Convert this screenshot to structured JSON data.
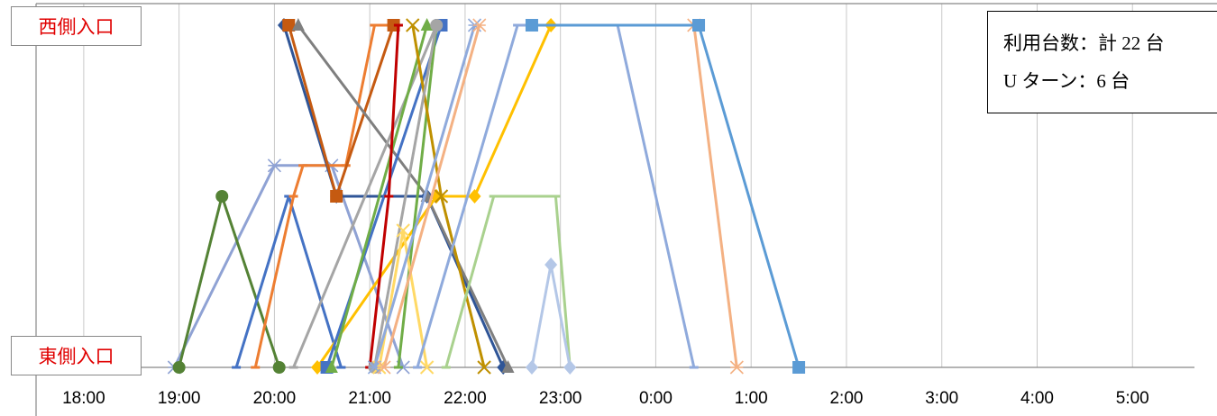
{
  "chart_data": {
    "type": "line",
    "y_categories": {
      "top": "西側入口",
      "bottom": "東側入口"
    },
    "x_ticks": [
      "18:00",
      "19:00",
      "20:00",
      "21:00",
      "22:00",
      "23:00",
      "0:00",
      "1:00",
      "2:00",
      "3:00",
      "4:00",
      "5:00"
    ],
    "xlim": [
      17.5,
      29.65
    ],
    "ylim": [
      0,
      1
    ],
    "grid": "vertical",
    "annotation": [
      "利用台数：計 22 台",
      "U ターン：6 台"
    ],
    "series": [
      {
        "color": "#8fa2d4",
        "marker": "star",
        "points": [
          [
            18.95,
            0
          ],
          [
            20.0,
            0.59
          ],
          [
            20.6,
            0.59
          ],
          [
            21.35,
            0
          ]
        ]
      },
      {
        "color": "#548235",
        "marker": "circle",
        "points": [
          [
            19.0,
            0
          ],
          [
            19.45,
            0.5
          ],
          [
            20.05,
            0
          ]
        ]
      },
      {
        "color": "#4472c4",
        "marker": "dash",
        "points": [
          [
            19.6,
            0
          ],
          [
            20.15,
            0.5
          ],
          [
            20.7,
            0
          ]
        ]
      },
      {
        "color": "#ed7d31",
        "marker": "dash",
        "points": [
          [
            19.8,
            0
          ],
          [
            20.2,
            0.5
          ],
          [
            20.3,
            0.59
          ],
          [
            20.75,
            0.59
          ],
          [
            21.05,
            1
          ],
          [
            21.3,
            1
          ]
        ]
      },
      {
        "color": "#2f5597",
        "marker": "diamond",
        "points": [
          [
            20.1,
            1
          ],
          [
            20.65,
            0.5
          ],
          [
            21.6,
            0.5
          ],
          [
            22.4,
            0
          ]
        ]
      },
      {
        "color": "#c55a11",
        "marker": "square",
        "points": [
          [
            20.15,
            1
          ],
          [
            20.65,
            0.5
          ],
          [
            21.25,
            1
          ]
        ]
      },
      {
        "color": "#7f7f7f",
        "marker": "triangle",
        "points": [
          [
            20.25,
            1
          ],
          [
            21.6,
            0.5
          ],
          [
            22.45,
            0
          ]
        ]
      },
      {
        "color": "#a5a5a5",
        "marker": "dash",
        "points": [
          [
            20.2,
            0
          ],
          [
            21.7,
            1
          ]
        ]
      },
      {
        "color": "#ffc000",
        "marker": "diamond",
        "points": [
          [
            20.45,
            0
          ],
          [
            21.7,
            0.5
          ],
          [
            22.1,
            0.5
          ],
          [
            22.9,
            1
          ]
        ]
      },
      {
        "color": "#4472c4",
        "marker": "square",
        "points": [
          [
            20.55,
            0
          ],
          [
            21.75,
            1
          ]
        ]
      },
      {
        "color": "#70ad47",
        "marker": "triangle",
        "points": [
          [
            20.6,
            0
          ],
          [
            21.6,
            1
          ]
        ]
      },
      {
        "color": "#70ad47",
        "marker": "dash",
        "points": [
          [
            21.3,
            0
          ],
          [
            21.7,
            1
          ]
        ]
      },
      {
        "color": "#c00000",
        "marker": "dash",
        "points": [
          [
            21.0,
            0
          ],
          [
            21.2,
            0.5
          ],
          [
            21.3,
            1
          ]
        ]
      },
      {
        "color": "#bf9000",
        "marker": "cross",
        "points": [
          [
            21.45,
            1
          ],
          [
            21.75,
            0.5
          ],
          [
            22.2,
            0
          ]
        ]
      },
      {
        "color": "#a5a5a5",
        "marker": "circle",
        "points": [
          [
            21.05,
            0
          ],
          [
            21.7,
            1
          ]
        ]
      },
      {
        "color": "#ffd966",
        "marker": "cross",
        "points": [
          [
            21.1,
            0
          ],
          [
            21.35,
            0.4
          ],
          [
            21.6,
            0
          ]
        ]
      },
      {
        "color": "#8faadc",
        "marker": "star",
        "points": [
          [
            21.05,
            0
          ],
          [
            22.1,
            1
          ]
        ]
      },
      {
        "color": "#f4b183",
        "marker": "star",
        "points": [
          [
            21.15,
            0
          ],
          [
            22.15,
            1
          ]
        ]
      },
      {
        "color": "#a9d18e",
        "marker": "dash",
        "points": [
          [
            21.8,
            0
          ],
          [
            22.3,
            0.5
          ],
          [
            22.95,
            0.5
          ],
          [
            23.1,
            0
          ]
        ]
      },
      {
        "color": "#8faadc",
        "marker": "dash",
        "points": [
          [
            21.5,
            0
          ],
          [
            22.55,
            1
          ],
          [
            23.6,
            1
          ],
          [
            24.4,
            0
          ]
        ]
      },
      {
        "color": "#b4c7e7",
        "marker": "diamond",
        "points": [
          [
            22.7,
            0
          ],
          [
            22.9,
            0.3
          ],
          [
            23.1,
            0
          ]
        ]
      },
      {
        "color": "#f4b183",
        "marker": "star",
        "points": [
          [
            24.4,
            1
          ],
          [
            24.85,
            0
          ]
        ]
      },
      {
        "color": "#5b9bd5",
        "marker": "square",
        "points": [
          [
            22.7,
            1
          ],
          [
            24.45,
            1
          ],
          [
            25.5,
            0
          ]
        ]
      }
    ]
  }
}
